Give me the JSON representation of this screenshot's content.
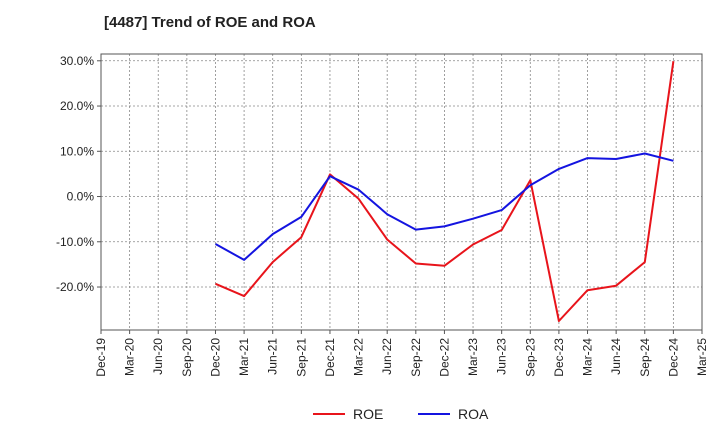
{
  "chart_data": {
    "type": "line",
    "title": "[4487]  Trend of ROE and ROA",
    "xlabel": "",
    "ylabel": "",
    "x_ticks": [
      "Dec-19",
      "Mar-20",
      "Jun-20",
      "Sep-20",
      "Dec-20",
      "Mar-21",
      "Jun-21",
      "Sep-21",
      "Dec-21",
      "Mar-22",
      "Jun-22",
      "Sep-22",
      "Dec-22",
      "Mar-23",
      "Jun-23",
      "Sep-23",
      "Dec-23",
      "Mar-24",
      "Jun-24",
      "Sep-24",
      "Dec-24",
      "Mar-25"
    ],
    "y_ticks": [
      30,
      20,
      10,
      0,
      -10,
      -20
    ],
    "y_tick_labels": [
      "30.0%",
      "20.0%",
      "10.0%",
      "0.0%",
      "-10.0%",
      "-20.0%"
    ],
    "ylim": [
      -29.5,
      31.5
    ],
    "grid": true,
    "legend_position": "bottom-center",
    "series": [
      {
        "name": "ROE",
        "color": "#e8141b",
        "x": [
          "Dec-20",
          "Mar-21",
          "Jun-21",
          "Sep-21",
          "Dec-21",
          "Mar-22",
          "Jun-22",
          "Sep-22",
          "Dec-22",
          "Mar-23",
          "Jun-23",
          "Sep-23",
          "Dec-23",
          "Mar-24",
          "Jun-24",
          "Sep-24",
          "Dec-24"
        ],
        "values": [
          -19.3,
          -22.0,
          -14.5,
          -9.0,
          4.9,
          -0.5,
          -9.5,
          -14.8,
          -15.3,
          -10.6,
          -7.4,
          3.6,
          -27.5,
          -20.7,
          -19.7,
          -14.5,
          29.9
        ]
      },
      {
        "name": "ROA",
        "color": "#1414e0",
        "x": [
          "Dec-20",
          "Mar-21",
          "Jun-21",
          "Sep-21",
          "Dec-21",
          "Mar-22",
          "Jun-22",
          "Sep-22",
          "Dec-22",
          "Mar-23",
          "Jun-23",
          "Sep-23",
          "Dec-23",
          "Mar-24",
          "Jun-24",
          "Sep-24",
          "Dec-24"
        ],
        "values": [
          -10.5,
          -14.0,
          -8.3,
          -4.5,
          4.5,
          1.5,
          -3.9,
          -7.3,
          -6.6,
          -4.9,
          -3.0,
          2.5,
          6.1,
          8.5,
          8.3,
          9.5,
          7.9
        ]
      }
    ]
  }
}
